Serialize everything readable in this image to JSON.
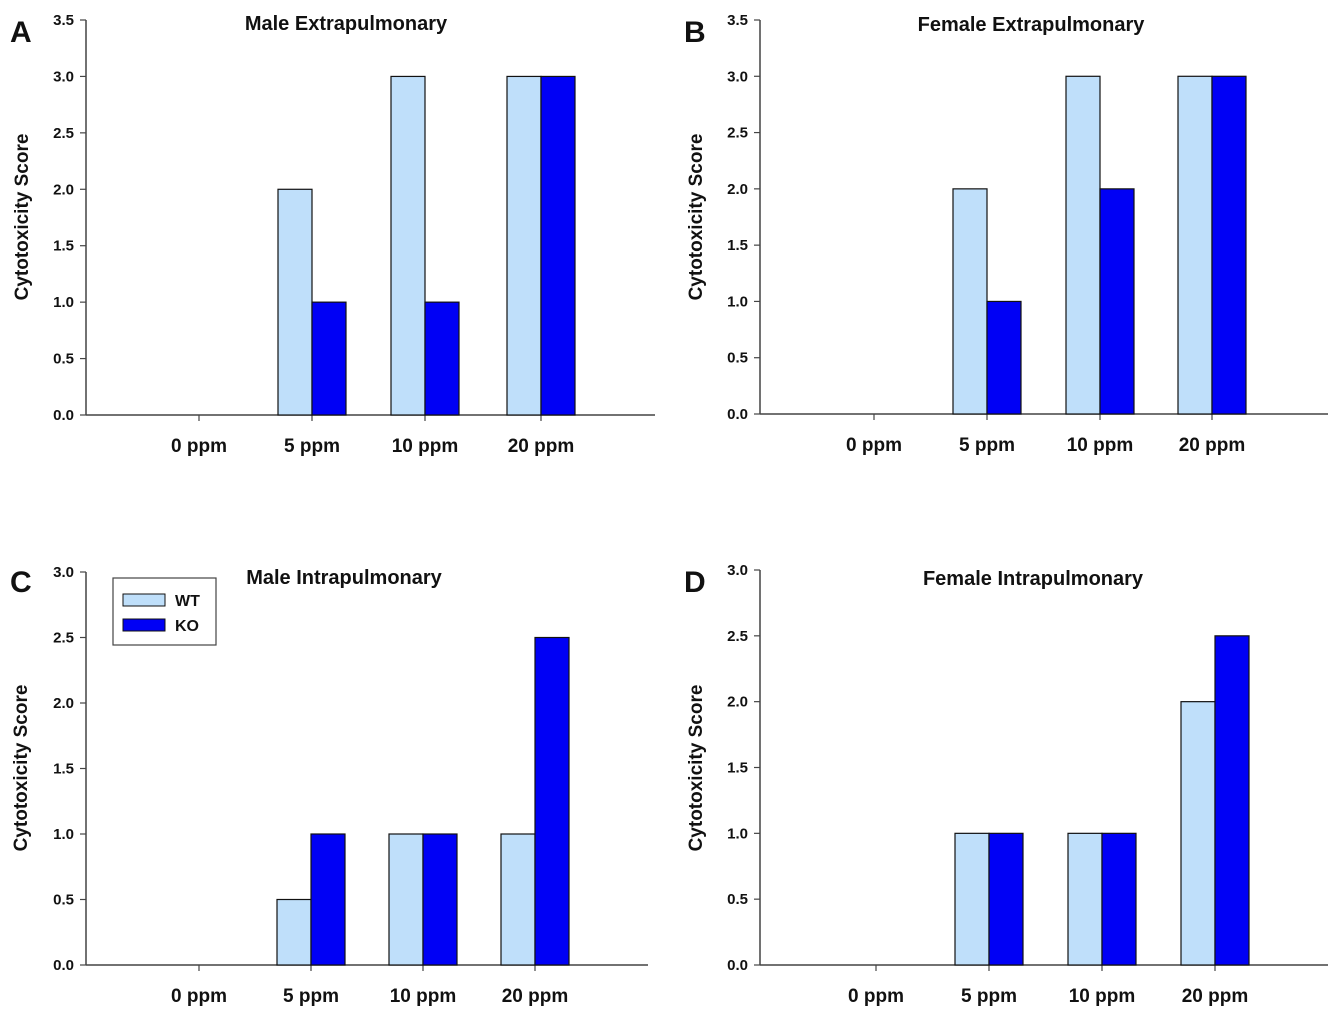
{
  "colors": {
    "wt": "#BFDFFA",
    "ko": "#0000F5",
    "axis": "#444444",
    "bar_stroke": "#111111"
  },
  "legend": {
    "items": [
      {
        "label": "WT"
      },
      {
        "label": "KO"
      }
    ]
  },
  "chart_data": [
    {
      "type": "bar",
      "panel": "A",
      "title": "Male Extrapulmonary",
      "ylabel": "Cytotoxicity Score",
      "xlabel": "",
      "categories": [
        "0 ppm",
        "5 ppm",
        "10 ppm",
        "20 ppm"
      ],
      "ylim": [
        0,
        3.5
      ],
      "yticks": [
        "0.0",
        "0.5",
        "1.0",
        "1.5",
        "2.0",
        "2.5",
        "3.0",
        "3.5"
      ],
      "series": [
        {
          "name": "WT",
          "values": [
            0,
            2,
            3,
            3
          ]
        },
        {
          "name": "KO",
          "values": [
            0,
            1,
            1,
            3
          ]
        }
      ]
    },
    {
      "type": "bar",
      "panel": "B",
      "title": "Female Extrapulmonary",
      "ylabel": "Cytotoxicity Score",
      "xlabel": "",
      "categories": [
        "0 ppm",
        "5 ppm",
        "10 ppm",
        "20 ppm"
      ],
      "ylim": [
        0,
        3.5
      ],
      "yticks": [
        "0.0",
        "0.5",
        "1.0",
        "1.5",
        "2.0",
        "2.5",
        "3.0",
        "3.5"
      ],
      "series": [
        {
          "name": "WT",
          "values": [
            0,
            2,
            3,
            3
          ]
        },
        {
          "name": "KO",
          "values": [
            0,
            1,
            2,
            3
          ]
        }
      ]
    },
    {
      "type": "bar",
      "panel": "C",
      "title": "Male Intrapulmonary",
      "ylabel": "Cytotoxicity Score",
      "xlabel": "",
      "categories": [
        "0 ppm",
        "5 ppm",
        "10 ppm",
        "20 ppm"
      ],
      "ylim": [
        0,
        3.0
      ],
      "yticks": [
        "0.0",
        "0.5",
        "1.0",
        "1.5",
        "2.0",
        "2.5",
        "3.0"
      ],
      "legend_position": "top-left",
      "series": [
        {
          "name": "WT",
          "values": [
            0,
            0.5,
            1,
            1
          ]
        },
        {
          "name": "KO",
          "values": [
            0,
            1,
            1,
            2.5
          ]
        }
      ]
    },
    {
      "type": "bar",
      "panel": "D",
      "title": "Female Intrapulmonary",
      "ylabel": "Cytotoxicity Score",
      "xlabel": "",
      "categories": [
        "0 ppm",
        "5 ppm",
        "10 ppm",
        "20 ppm"
      ],
      "ylim": [
        0,
        3.0
      ],
      "yticks": [
        "0.0",
        "0.5",
        "1.0",
        "1.5",
        "2.0",
        "2.5",
        "3.0"
      ],
      "series": [
        {
          "name": "WT",
          "values": [
            0,
            1,
            1,
            2
          ]
        },
        {
          "name": "KO",
          "values": [
            0,
            1,
            1,
            2.5
          ]
        }
      ]
    }
  ]
}
